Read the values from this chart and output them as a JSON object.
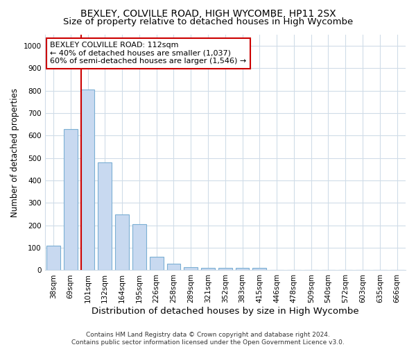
{
  "title": "BEXLEY, COLVILLE ROAD, HIGH WYCOMBE, HP11 2SX",
  "subtitle": "Size of property relative to detached houses in High Wycombe",
  "xlabel": "Distribution of detached houses by size in High Wycombe",
  "ylabel": "Number of detached properties",
  "categories": [
    "38sqm",
    "69sqm",
    "101sqm",
    "132sqm",
    "164sqm",
    "195sqm",
    "226sqm",
    "258sqm",
    "289sqm",
    "321sqm",
    "352sqm",
    "383sqm",
    "415sqm",
    "446sqm",
    "478sqm",
    "509sqm",
    "540sqm",
    "572sqm",
    "603sqm",
    "635sqm",
    "666sqm"
  ],
  "values": [
    110,
    630,
    805,
    480,
    250,
    205,
    60,
    28,
    15,
    10,
    10,
    10,
    10,
    0,
    0,
    0,
    0,
    0,
    0,
    0,
    0
  ],
  "bar_color": "#c8d9f0",
  "bar_edge_color": "#7bafd4",
  "vline_color": "#cc0000",
  "annotation_text": "BEXLEY COLVILLE ROAD: 112sqm\n← 40% of detached houses are smaller (1,037)\n60% of semi-detached houses are larger (1,546) →",
  "annotation_box_facecolor": "#ffffff",
  "annotation_box_edgecolor": "#cc0000",
  "ylim": [
    0,
    1050
  ],
  "yticks": [
    0,
    100,
    200,
    300,
    400,
    500,
    600,
    700,
    800,
    900,
    1000
  ],
  "footer": "Contains HM Land Registry data © Crown copyright and database right 2024.\nContains public sector information licensed under the Open Government Licence v3.0.",
  "title_fontsize": 10,
  "subtitle_fontsize": 9.5,
  "xlabel_fontsize": 9.5,
  "ylabel_fontsize": 8.5,
  "tick_fontsize": 7.5,
  "annot_fontsize": 8,
  "footer_fontsize": 6.5,
  "bg_color": "#ffffff",
  "plot_bg_color": "#ffffff",
  "grid_color": "#d0dce8"
}
